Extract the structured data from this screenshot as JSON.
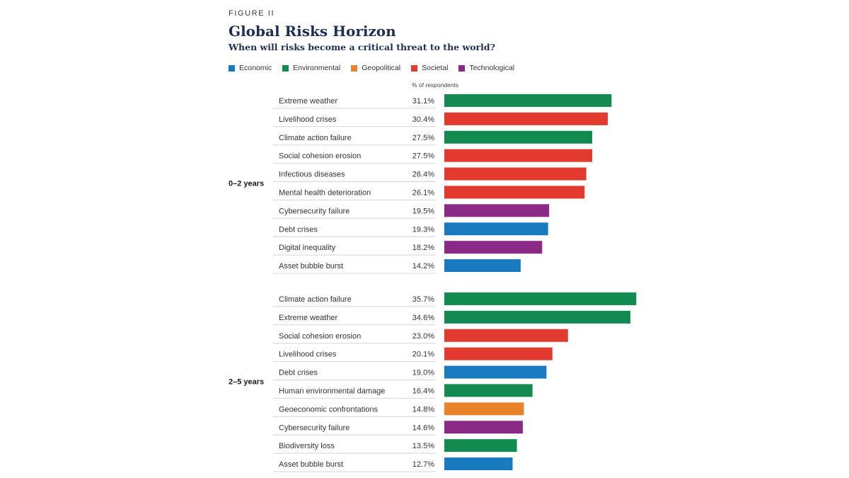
{
  "figure_label": "FIGURE II",
  "title": "Global Risks Horizon",
  "subtitle": "When will risks become a critical threat to the world?",
  "legend": [
    {
      "label": "Economic",
      "color": "#1a7ac0"
    },
    {
      "label": "Environmental",
      "color": "#138a4f"
    },
    {
      "label": "Geopolitical",
      "color": "#e8832a"
    },
    {
      "label": "Societal",
      "color": "#e23a2e"
    },
    {
      "label": "Technological",
      "color": "#8a2a86"
    }
  ],
  "column_header": "% of respondents",
  "chart_data": {
    "type": "bar",
    "orientation": "horizontal",
    "title": "Global Risks Horizon",
    "subtitle": "When will risks become a critical threat to the world?",
    "value_label": "% of respondents",
    "groups": [
      {
        "label": "0–2 years",
        "items": [
          {
            "name": "Extreme weather",
            "value": 31.1,
            "value_label": "31.1%",
            "category": "Environmental"
          },
          {
            "name": "Livelihood crises",
            "value": 30.4,
            "value_label": "30.4%",
            "category": "Societal"
          },
          {
            "name": "Climate action failure",
            "value": 27.5,
            "value_label": "27.5%",
            "category": "Environmental"
          },
          {
            "name": "Social cohesion erosion",
            "value": 27.5,
            "value_label": "27.5%",
            "category": "Societal"
          },
          {
            "name": "Infectious diseases",
            "value": 26.4,
            "value_label": "26.4%",
            "category": "Societal"
          },
          {
            "name": "Mental health deterioration",
            "value": 26.1,
            "value_label": "26.1%",
            "category": "Societal"
          },
          {
            "name": "Cybersecurity failure",
            "value": 19.5,
            "value_label": "19.5%",
            "category": "Technological"
          },
          {
            "name": "Debt crises",
            "value": 19.3,
            "value_label": "19.3%",
            "category": "Economic"
          },
          {
            "name": "Digital inequality",
            "value": 18.2,
            "value_label": "18.2%",
            "category": "Technological"
          },
          {
            "name": "Asset bubble burst",
            "value": 14.2,
            "value_label": "14.2%",
            "category": "Economic"
          }
        ]
      },
      {
        "label": "2–5 years",
        "items": [
          {
            "name": "Climate action failure",
            "value": 35.7,
            "value_label": "35.7%",
            "category": "Environmental"
          },
          {
            "name": "Extreme weather",
            "value": 34.6,
            "value_label": "34.6%",
            "category": "Environmental"
          },
          {
            "name": "Social cohesion erosion",
            "value": 23.0,
            "value_label": "23.0%",
            "category": "Societal"
          },
          {
            "name": "Livelihood crises",
            "value": 20.1,
            "value_label": "20.1%",
            "category": "Societal"
          },
          {
            "name": "Debt crises",
            "value": 19.0,
            "value_label": "19.0%",
            "category": "Economic"
          },
          {
            "name": "Human environmental damage",
            "value": 16.4,
            "value_label": "16.4%",
            "category": "Environmental"
          },
          {
            "name": "Geoeconomic confrontations",
            "value": 14.8,
            "value_label": "14.8%",
            "category": "Geopolitical"
          },
          {
            "name": "Cybersecurity failure",
            "value": 14.6,
            "value_label": "14.6%",
            "category": "Technological"
          },
          {
            "name": "Biodiversity loss",
            "value": 13.5,
            "value_label": "13.5%",
            "category": "Environmental"
          },
          {
            "name": "Asset bubble burst",
            "value": 12.7,
            "value_label": "12.7%",
            "category": "Economic"
          }
        ]
      }
    ]
  }
}
